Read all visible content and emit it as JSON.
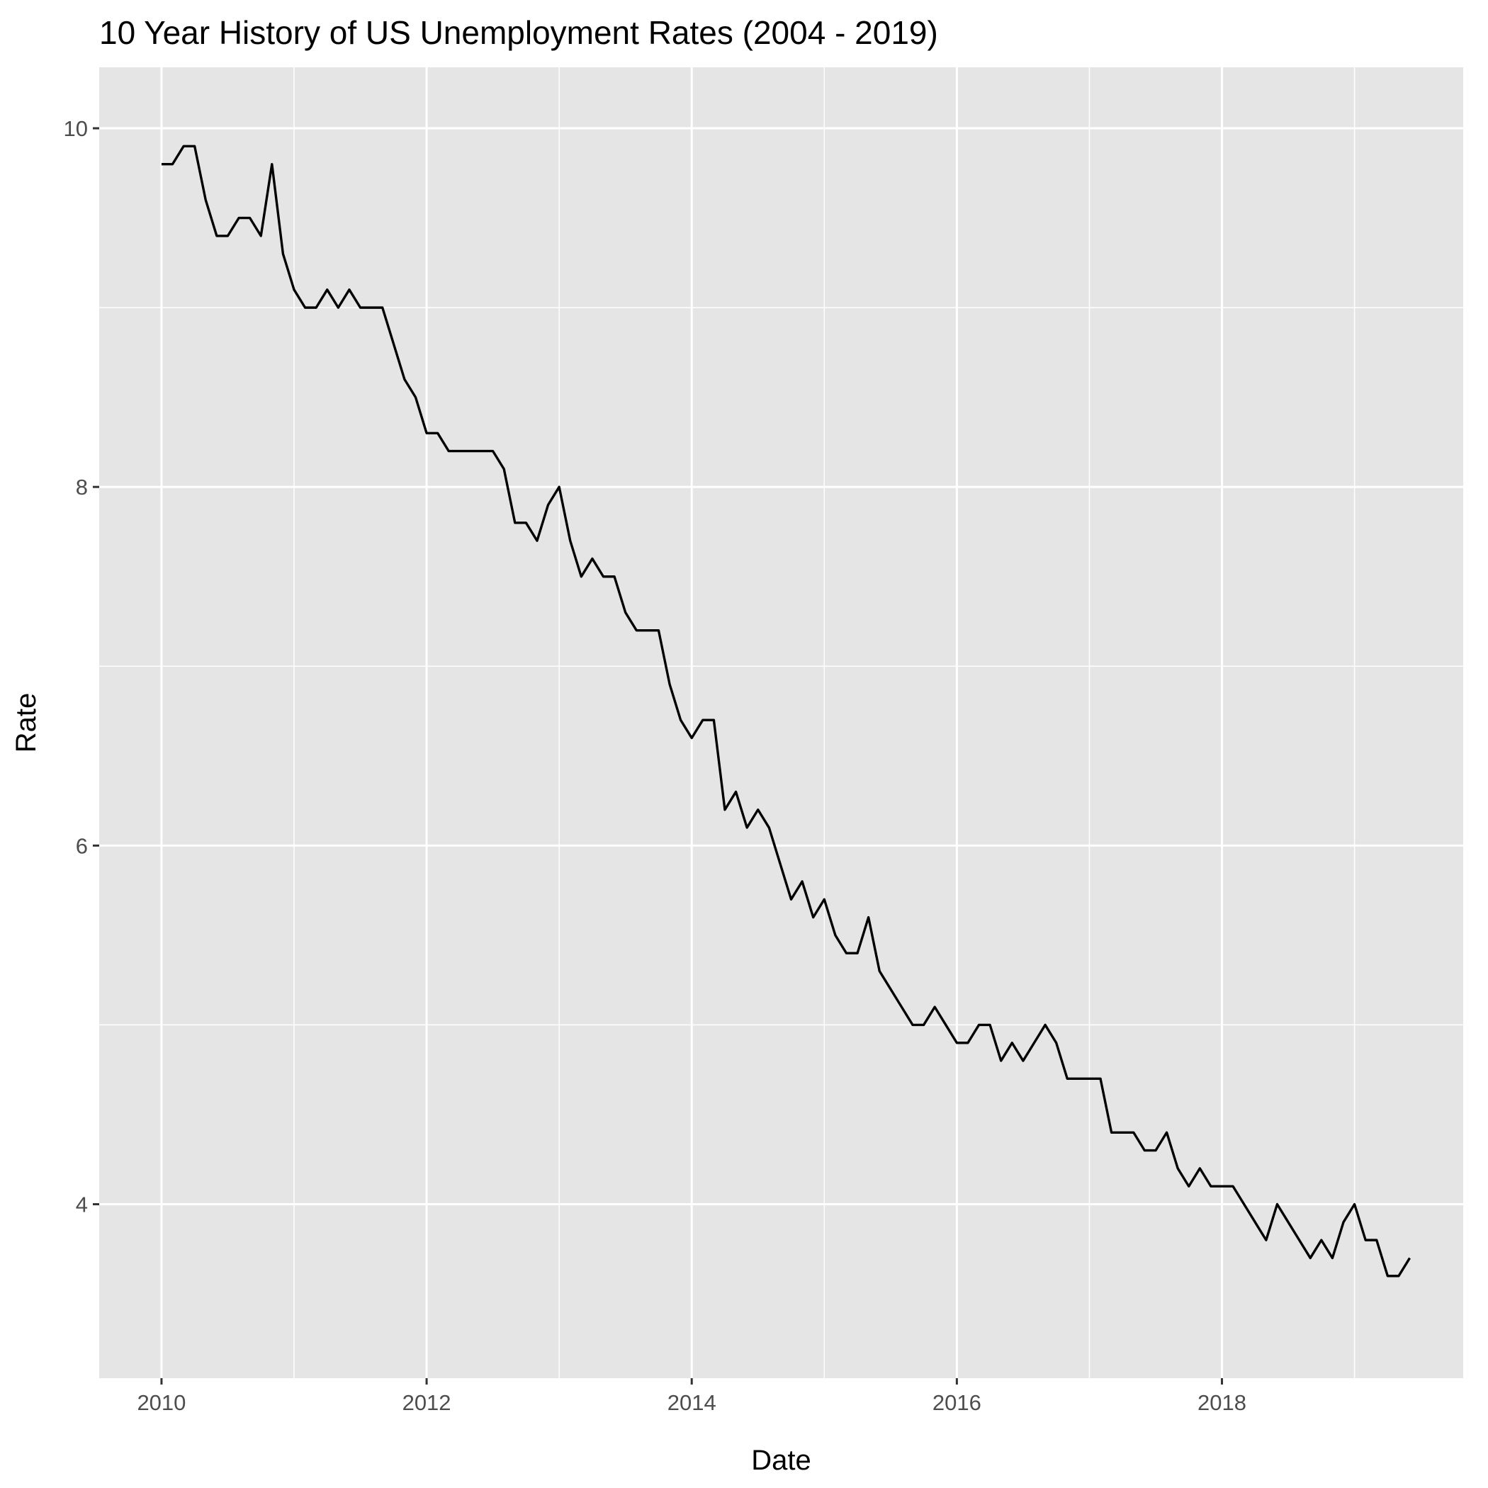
{
  "chart_data": {
    "type": "line",
    "title": "10 Year History of US Unemployment Rates (2004 - 2019)",
    "xlabel": "Date",
    "ylabel": "Rate",
    "x_ticks": [
      {
        "label": "2010",
        "value": 2010
      },
      {
        "label": "2012",
        "value": 2012
      },
      {
        "label": "2014",
        "value": 2014
      },
      {
        "label": "2016",
        "value": 2016
      },
      {
        "label": "2018",
        "value": 2018
      }
    ],
    "y_ticks": [
      {
        "label": "4",
        "value": 4
      },
      {
        "label": "6",
        "value": 6
      },
      {
        "label": "8",
        "value": 8
      },
      {
        "label": "10",
        "value": 10
      }
    ],
    "xlim": [
      2009.53,
      2019.82
    ],
    "ylim": [
      3.03,
      10.34
    ],
    "grid": true,
    "background_color": "#e5e5e5",
    "grid_color": "#ffffff",
    "line_color": "#000000",
    "series": [
      {
        "x": [
          "2010-01",
          "2010-02",
          "2010-03",
          "2010-04",
          "2010-05",
          "2010-06",
          "2010-07",
          "2010-08",
          "2010-09",
          "2010-10",
          "2010-11",
          "2010-12",
          "2011-01",
          "2011-02",
          "2011-03",
          "2011-04",
          "2011-05",
          "2011-06",
          "2011-07",
          "2011-08",
          "2011-09",
          "2011-10",
          "2011-11",
          "2011-12",
          "2012-01",
          "2012-02",
          "2012-03",
          "2012-04",
          "2012-05",
          "2012-06",
          "2012-07",
          "2012-08",
          "2012-09",
          "2012-10",
          "2012-11",
          "2012-12",
          "2013-01",
          "2013-02",
          "2013-03",
          "2013-04",
          "2013-05",
          "2013-06",
          "2013-07",
          "2013-08",
          "2013-09",
          "2013-10",
          "2013-11",
          "2013-12",
          "2014-01",
          "2014-02",
          "2014-03",
          "2014-04",
          "2014-05",
          "2014-06",
          "2014-07",
          "2014-08",
          "2014-09",
          "2014-10",
          "2014-11",
          "2014-12",
          "2015-01",
          "2015-02",
          "2015-03",
          "2015-04",
          "2015-05",
          "2015-06",
          "2015-07",
          "2015-08",
          "2015-09",
          "2015-10",
          "2015-11",
          "2015-12",
          "2016-01",
          "2016-02",
          "2016-03",
          "2016-04",
          "2016-05",
          "2016-06",
          "2016-07",
          "2016-08",
          "2016-09",
          "2016-10",
          "2016-11",
          "2016-12",
          "2017-01",
          "2017-02",
          "2017-03",
          "2017-04",
          "2017-05",
          "2017-06",
          "2017-07",
          "2017-08",
          "2017-09",
          "2017-10",
          "2017-11",
          "2017-12",
          "2018-01",
          "2018-02",
          "2018-03",
          "2018-04",
          "2018-05",
          "2018-06",
          "2018-07",
          "2018-08",
          "2018-09",
          "2018-10",
          "2018-11",
          "2018-12",
          "2019-01",
          "2019-02",
          "2019-03",
          "2019-04",
          "2019-05",
          "2019-06"
        ],
        "y": [
          9.8,
          9.8,
          9.9,
          9.9,
          9.6,
          9.4,
          9.4,
          9.5,
          9.5,
          9.4,
          9.8,
          9.3,
          9.1,
          9.0,
          9.0,
          9.1,
          9.0,
          9.1,
          9.0,
          9.0,
          9.0,
          8.8,
          8.6,
          8.5,
          8.3,
          8.3,
          8.2,
          8.2,
          8.2,
          8.2,
          8.2,
          8.1,
          7.8,
          7.8,
          7.7,
          7.9,
          8.0,
          7.7,
          7.5,
          7.6,
          7.5,
          7.5,
          7.3,
          7.2,
          7.2,
          7.2,
          6.9,
          6.7,
          6.6,
          6.7,
          6.7,
          6.2,
          6.3,
          6.1,
          6.2,
          6.1,
          5.9,
          5.7,
          5.8,
          5.6,
          5.7,
          5.5,
          5.4,
          5.4,
          5.6,
          5.3,
          5.2,
          5.1,
          5.0,
          5.0,
          5.1,
          5.0,
          4.9,
          4.9,
          5.0,
          5.0,
          4.8,
          4.9,
          4.8,
          4.9,
          5.0,
          4.9,
          4.7,
          4.7,
          4.7,
          4.7,
          4.4,
          4.4,
          4.4,
          4.3,
          4.3,
          4.4,
          4.2,
          4.1,
          4.2,
          4.1,
          4.1,
          4.1,
          4.0,
          3.9,
          3.8,
          4.0,
          3.9,
          3.8,
          3.7,
          3.8,
          3.7,
          3.9,
          4.0,
          3.8,
          3.8,
          3.6,
          3.6,
          3.7
        ]
      }
    ]
  }
}
